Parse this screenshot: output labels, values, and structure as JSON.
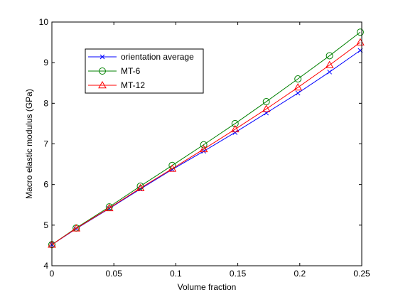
{
  "chart_data": {
    "type": "line",
    "title": "",
    "xlabel": "Volume fraction",
    "ylabel": "Macro elastic modulus (GPa)",
    "xlim": [
      0,
      0.25
    ],
    "ylim": [
      4,
      10
    ],
    "xticks": [
      0,
      0.05,
      0.1,
      0.15,
      0.2,
      0.25
    ],
    "xtick_labels": [
      "0",
      "0.05",
      "0.1",
      "0.15",
      "0.2",
      "0.25"
    ],
    "yticks": [
      4,
      5,
      6,
      7,
      8,
      9,
      10
    ],
    "ytick_labels": [
      "4",
      "5",
      "6",
      "7",
      "8",
      "9",
      "10"
    ],
    "grid": false,
    "legend_position": "upper-left",
    "x": [
      0,
      0.0196,
      0.0463,
      0.0714,
      0.0971,
      0.1225,
      0.1478,
      0.173,
      0.1985,
      0.224,
      0.2488
    ],
    "series": [
      {
        "name": "orientation average",
        "color": "#0000ff",
        "marker": "x",
        "values": [
          4.52,
          4.91,
          5.41,
          5.89,
          6.37,
          6.82,
          7.28,
          7.76,
          8.25,
          8.77,
          9.3
        ]
      },
      {
        "name": "MT-6",
        "color": "#008000",
        "marker": "circle",
        "values": [
          4.52,
          4.93,
          5.45,
          5.96,
          6.47,
          6.98,
          7.5,
          8.04,
          8.6,
          9.17,
          9.75
        ]
      },
      {
        "name": "MT-12",
        "color": "#ff0000",
        "marker": "triangle",
        "values": [
          4.52,
          4.92,
          5.42,
          5.91,
          6.39,
          6.87,
          7.36,
          7.86,
          8.39,
          8.94,
          9.5
        ]
      }
    ]
  }
}
